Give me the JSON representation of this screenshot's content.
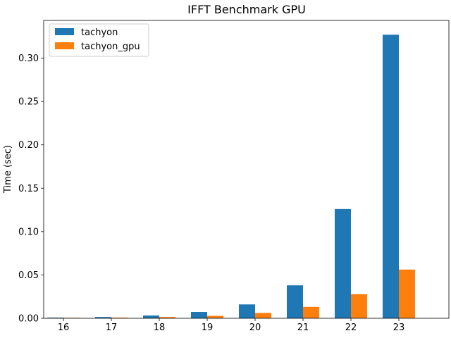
{
  "chart_data": {
    "type": "bar",
    "title": "IFFT Benchmark GPU",
    "xlabel": "",
    "ylabel": "Time (sec)",
    "categories": [
      "16",
      "17",
      "18",
      "19",
      "20",
      "21",
      "22",
      "23"
    ],
    "series": [
      {
        "name": "tachyon",
        "color": "#1f77b4",
        "values": [
          0.0008,
          0.0015,
          0.0032,
          0.0073,
          0.016,
          0.038,
          0.126,
          0.327
        ]
      },
      {
        "name": "tachyon_gpu",
        "color": "#ff7f0e",
        "values": [
          0.0006,
          0.0008,
          0.0015,
          0.0028,
          0.0062,
          0.0132,
          0.0278,
          0.0562
        ]
      }
    ],
    "ylim": [
      0,
      0.3435
    ],
    "yticks": [
      "0.00",
      "0.05",
      "0.10",
      "0.15",
      "0.20",
      "0.25",
      "0.30"
    ],
    "grid": false,
    "legend_position": "top-left"
  }
}
